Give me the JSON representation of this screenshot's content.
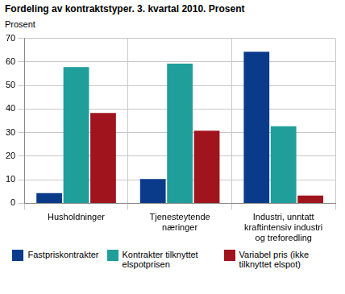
{
  "chart_data": {
    "type": "bar",
    "title": "Fordeling av kontraktstyper. 3. kvartal 2010. Prosent",
    "y_label": "Prosent",
    "categories": [
      "Husholdninger",
      "Tjenesteytende næringer",
      "Industri, unntatt kraftintensiv industri og treforedling"
    ],
    "series": [
      {
        "name": "Fastpriskontrakter",
        "color": "#0a3a8a",
        "values": [
          4.3,
          10.3,
          64.3
        ]
      },
      {
        "name": "Kontrakter tilknyttet elspotprisen",
        "color": "#1f9e9a",
        "values": [
          57.8,
          59.3,
          32.7
        ]
      },
      {
        "name": "Variabel pris (ikke tilknyttet elspot)",
        "color": "#a0141e",
        "values": [
          38.3,
          30.8,
          3.3
        ]
      }
    ],
    "ylim": [
      0,
      70
    ],
    "yticks": [
      0,
      10,
      20,
      30,
      40,
      50,
      60,
      70
    ],
    "grid": true,
    "legend": "bottom"
  }
}
